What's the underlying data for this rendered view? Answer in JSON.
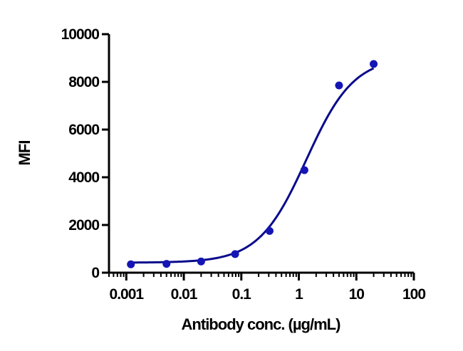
{
  "chart_data": {
    "type": "scatter",
    "title": "",
    "xlabel": "Antibody conc. (µg/mL)",
    "ylabel": "MFI",
    "x_scale": "log",
    "xlim": [
      0.0005,
      100
    ],
    "ylim": [
      0,
      10000
    ],
    "x_ticks": [
      {
        "value": 0.001,
        "label": "0.001"
      },
      {
        "value": 0.01,
        "label": "0.01"
      },
      {
        "value": 0.1,
        "label": "0.1"
      },
      {
        "value": 1,
        "label": "1"
      },
      {
        "value": 10,
        "label": "10"
      },
      {
        "value": 100,
        "label": "100"
      }
    ],
    "y_ticks": [
      {
        "value": 0,
        "label": "0"
      },
      {
        "value": 2000,
        "label": "2000"
      },
      {
        "value": 4000,
        "label": "4000"
      },
      {
        "value": 6000,
        "label": "6000"
      },
      {
        "value": 8000,
        "label": "8000"
      },
      {
        "value": 10000,
        "label": "10000"
      }
    ],
    "grid": false,
    "legend": "none",
    "series": [
      {
        "color": "#1515b5",
        "x": [
          0.0012,
          0.005,
          0.02,
          0.078,
          0.31,
          1.25,
          5,
          20
        ],
        "y": [
          350,
          370,
          470,
          780,
          1750,
          4300,
          7850,
          8750
        ]
      }
    ],
    "fit_curve": {
      "model": "4PL",
      "color": "#0a0a8c",
      "bottom": 420,
      "top": 9050,
      "ec50": 1.35,
      "hill": 1.05
    }
  }
}
